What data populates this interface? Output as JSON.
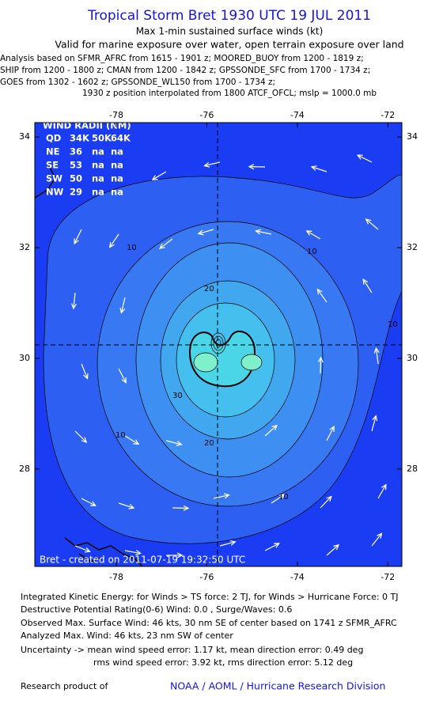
{
  "header": {
    "title": "Tropical Storm Bret 1930 UTC 19 JUL 2011",
    "subtitle": "Max 1-min sustained surface winds (kt)",
    "valid": "Valid for marine exposure over water, open terrain exposure over land",
    "analysis": [
      "Analysis based on SFMR_AFRC from 1615 - 1901 z; MOORED_BUOY from 1200 - 1819 z;",
      "SHIP from 1200 - 1800 z; CMAN from 1200 - 1842 z; GPSSONDE_SFC from 1700 - 1734 z;",
      "GOES from 1302 - 1602 z; GPSSONDE_WL150 from 1700 - 1734 z;"
    ],
    "position": "1930 z position interpolated from 1800 ATCF_OFCL; mslp = 1000.0 mb"
  },
  "chart_data": {
    "type": "contour",
    "xlim": [
      -79.8,
      -71.69
    ],
    "xticks": [
      -78,
      -76,
      -74,
      -72
    ],
    "ylim": [
      26.24,
      34.26
    ],
    "yticks": [
      28,
      30,
      32,
      34
    ],
    "contour_levels": [
      10,
      20,
      30
    ],
    "wind_radii": {
      "title": "WIND RADII (NM)",
      "header": [
        "QD",
        "34K",
        "50K",
        "64K"
      ],
      "rows": [
        [
          "NE",
          "36",
          "na",
          "na"
        ],
        [
          "SE",
          "53",
          "na",
          "na"
        ],
        [
          "SW",
          "50",
          "na",
          "na"
        ],
        [
          "NW",
          "29",
          "na",
          "na"
        ]
      ]
    },
    "credit": "Bret - created on 2011-07-19 19:32:50 UTC"
  },
  "footer": {
    "lines": [
      "Integrated Kinetic Energy:  for Winds > TS force: 2 TJ,  for Winds > Hurricane Force: 0 TJ",
      "Destructive Potential Rating(0-6)   Wind: 0.0 , Surge/Waves: 0.6",
      "Observed Max. Surface Wind: 46 kts, 30 nm SE of center based on 1741 z SFMR_AFRC",
      "Analyzed Max. Wind: 46 kts, 23 nm SW of center",
      "Uncertainty -> mean wind speed error: 1.17 kt,   mean direction error: 0.49 deg",
      "rms wind speed error: 3.92 kt,   rms direction error: 5.12 deg"
    ],
    "research": "Research product of",
    "org": "NOAA / AOML / Hurricane Research Division"
  }
}
